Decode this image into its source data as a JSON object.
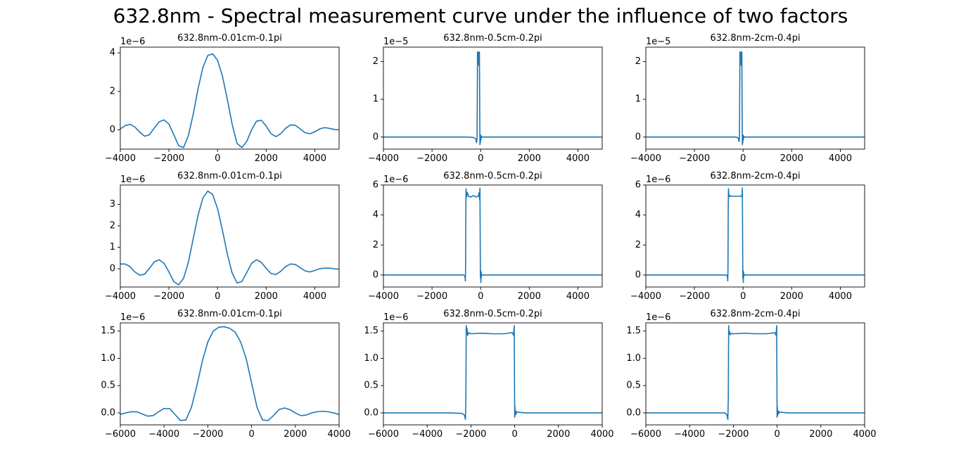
{
  "suptitle": "632.8nm - Spectral measurement curve under the influence of two factors",
  "line_color": "#1f77b4",
  "chart_data": [
    {
      "type": "line",
      "row": 0,
      "col": 0,
      "title": "632.8nm-0.01cm-0.1pi",
      "offset_label": "1e−6",
      "xlim": [
        -4000,
        5000
      ],
      "ylim": [
        -1.0,
        4.3
      ],
      "xticks": [
        -4000,
        -2000,
        0,
        2000,
        4000
      ],
      "xticklabels": [
        "−4000",
        "−2000",
        "0",
        "2000",
        "4000"
      ],
      "yticks": [
        0,
        2,
        4
      ],
      "yticklabels": [
        "0",
        "2",
        "4"
      ],
      "x": [
        -4000,
        -3800,
        -3600,
        -3400,
        -3200,
        -3000,
        -2800,
        -2600,
        -2400,
        -2200,
        -2000,
        -1800,
        -1600,
        -1400,
        -1200,
        -1000,
        -800,
        -600,
        -400,
        -200,
        0,
        200,
        400,
        600,
        800,
        1000,
        1200,
        1400,
        1600,
        1800,
        2000,
        2200,
        2400,
        2600,
        2800,
        3000,
        3200,
        3400,
        3600,
        3800,
        4000,
        4200,
        4400,
        4600,
        4800,
        5000
      ],
      "y": [
        0.05,
        0.22,
        0.29,
        0.15,
        -0.12,
        -0.33,
        -0.25,
        0.1,
        0.42,
        0.52,
        0.3,
        -0.25,
        -0.82,
        -0.92,
        -0.3,
        0.82,
        2.15,
        3.25,
        3.87,
        3.95,
        3.62,
        2.8,
        1.6,
        0.3,
        -0.7,
        -0.92,
        -0.6,
        0.0,
        0.45,
        0.5,
        0.2,
        -0.2,
        -0.35,
        -0.2,
        0.08,
        0.26,
        0.24,
        0.05,
        -0.15,
        -0.2,
        -0.1,
        0.05,
        0.12,
        0.08,
        0.02,
        0.0
      ]
    },
    {
      "type": "line",
      "row": 0,
      "col": 1,
      "title": "632.8nm-0.5cm-0.2pi",
      "offset_label": "1e−5",
      "xlim": [
        -4000,
        5000
      ],
      "ylim": [
        -0.32,
        2.38
      ],
      "xticks": [
        -4000,
        -2000,
        0,
        2000,
        4000
      ],
      "xticklabels": [
        "−4000",
        "−2000",
        "0",
        "2000",
        "4000"
      ],
      "yticks": [
        0,
        1,
        2
      ],
      "yticklabels": [
        "0",
        "1",
        "2"
      ],
      "x": [
        -4000,
        -1000,
        -600,
        -300,
        -200,
        -170,
        -150,
        -140,
        -130,
        -120,
        -110,
        -100,
        -90,
        -80,
        -70,
        -60,
        -50,
        -40,
        -30,
        -20,
        -10,
        0,
        10,
        20,
        30,
        40,
        50,
        100,
        200,
        600,
        1000,
        5000
      ],
      "y": [
        0.0,
        0.0,
        0.0,
        -0.01,
        -0.05,
        -0.15,
        -0.05,
        0.8,
        2.25,
        2.0,
        2.2,
        2.1,
        2.25,
        1.9,
        2.2,
        2.1,
        2.25,
        0.9,
        -0.2,
        0.06,
        -0.15,
        0.05,
        -0.08,
        0.03,
        -0.02,
        0.01,
        0.0,
        0.0,
        0.0,
        0.0,
        0.0,
        0.0
      ]
    },
    {
      "type": "line",
      "row": 0,
      "col": 2,
      "title": "632.8nm-2cm-0.4pi",
      "offset_label": "1e−5",
      "xlim": [
        -4000,
        5000
      ],
      "ylim": [
        -0.32,
        2.38
      ],
      "xticks": [
        -4000,
        -2000,
        0,
        2000,
        4000
      ],
      "xticklabels": [
        "−4000",
        "−2000",
        "0",
        "2000",
        "4000"
      ],
      "yticks": [
        0,
        1,
        2
      ],
      "yticklabels": [
        "0",
        "1",
        "2"
      ],
      "x": [
        -4000,
        -2000,
        -1000,
        -300,
        -200,
        -170,
        -150,
        -140,
        -130,
        -120,
        -110,
        -100,
        -90,
        -80,
        -70,
        -60,
        -50,
        -40,
        -30,
        -20,
        -10,
        0,
        10,
        20,
        30,
        40,
        50,
        100,
        200,
        1000,
        2000,
        5000
      ],
      "y": [
        0.0,
        0.0,
        0.0,
        0.0,
        -0.02,
        -0.12,
        -0.04,
        0.8,
        2.25,
        2.0,
        2.2,
        2.1,
        2.25,
        1.9,
        2.2,
        2.1,
        2.25,
        0.9,
        -0.2,
        0.06,
        -0.15,
        0.05,
        -0.08,
        0.03,
        -0.02,
        0.01,
        0.0,
        0.0,
        0.0,
        0.0,
        0.0,
        0.0
      ]
    },
    {
      "type": "line",
      "row": 1,
      "col": 0,
      "title": "632.8nm-0.01cm-0.1pi",
      "offset_label": "1e−6",
      "xlim": [
        -4000,
        5000
      ],
      "ylim": [
        -0.85,
        3.9
      ],
      "xticks": [
        -4000,
        -2000,
        0,
        2000,
        4000
      ],
      "xticklabels": [
        "−4000",
        "−2000",
        "0",
        "2000",
        "4000"
      ],
      "yticks": [
        0,
        1,
        2,
        3
      ],
      "yticklabels": [
        "0",
        "1",
        "2",
        "3"
      ],
      "x": [
        -4000,
        -3800,
        -3600,
        -3400,
        -3200,
        -3000,
        -2800,
        -2600,
        -2400,
        -2200,
        -2000,
        -1800,
        -1600,
        -1400,
        -1200,
        -1000,
        -800,
        -600,
        -400,
        -200,
        0,
        200,
        400,
        600,
        800,
        1000,
        1200,
        1400,
        1600,
        1800,
        2000,
        2200,
        2400,
        2600,
        2800,
        3000,
        3200,
        3400,
        3600,
        3800,
        4000,
        4200,
        4400,
        4600,
        4800,
        5000
      ],
      "y": [
        0.22,
        0.22,
        0.1,
        -0.15,
        -0.3,
        -0.25,
        0.02,
        0.32,
        0.42,
        0.25,
        -0.15,
        -0.6,
        -0.75,
        -0.45,
        0.3,
        1.4,
        2.5,
        3.3,
        3.62,
        3.45,
        2.8,
        1.8,
        0.7,
        -0.2,
        -0.66,
        -0.6,
        -0.18,
        0.25,
        0.42,
        0.3,
        0.02,
        -0.22,
        -0.27,
        -0.12,
        0.1,
        0.22,
        0.2,
        0.05,
        -0.1,
        -0.15,
        -0.08,
        0.0,
        0.03,
        0.03,
        0.0,
        -0.02
      ]
    },
    {
      "type": "line",
      "row": 1,
      "col": 1,
      "title": "632.8nm-0.5cm-0.2pi",
      "offset_label": "1e−6",
      "xlim": [
        -4000,
        5000
      ],
      "ylim": [
        -0.8,
        6.0
      ],
      "xticks": [
        -4000,
        -2000,
        0,
        2000,
        4000
      ],
      "xticklabels": [
        "−4000",
        "−2000",
        "0",
        "2000",
        "4000"
      ],
      "yticks": [
        0,
        2,
        4,
        6
      ],
      "yticklabels": [
        "0",
        "2",
        "4",
        "6"
      ],
      "x": [
        -4000,
        -2000,
        -1000,
        -700,
        -650,
        -630,
        -620,
        -610,
        -600,
        -580,
        -550,
        -500,
        -400,
        -300,
        -200,
        -100,
        -60,
        -40,
        -30,
        -20,
        -10,
        0,
        10,
        20,
        30,
        50,
        100,
        200,
        1000,
        5000
      ],
      "y": [
        0.0,
        0.0,
        0.0,
        0.0,
        -0.05,
        -0.4,
        0.5,
        4.5,
        5.75,
        5.2,
        5.5,
        5.25,
        5.2,
        5.3,
        5.2,
        5.25,
        5.5,
        5.0,
        5.8,
        3.0,
        -0.2,
        0.3,
        -0.5,
        0.2,
        -0.1,
        0.02,
        0.0,
        0.0,
        0.0,
        0.0
      ]
    },
    {
      "type": "line",
      "row": 1,
      "col": 2,
      "title": "632.8nm-2cm-0.4pi",
      "offset_label": "1e−6",
      "xlim": [
        -4000,
        5000
      ],
      "ylim": [
        -0.8,
        6.0
      ],
      "xticks": [
        -4000,
        -2000,
        0,
        2000,
        4000
      ],
      "xticklabels": [
        "−4000",
        "−2000",
        "0",
        "2000",
        "4000"
      ],
      "yticks": [
        0,
        2,
        4,
        6
      ],
      "yticklabels": [
        "0",
        "2",
        "4",
        "6"
      ],
      "x": [
        -4000,
        -2000,
        -1000,
        -700,
        -650,
        -630,
        -620,
        -610,
        -600,
        -580,
        -550,
        -500,
        -400,
        -300,
        -200,
        -100,
        -60,
        -40,
        -30,
        -20,
        -10,
        0,
        10,
        20,
        30,
        50,
        100,
        200,
        800,
        1000,
        5000
      ],
      "y": [
        0.0,
        0.0,
        0.0,
        0.0,
        -0.02,
        -0.4,
        0.5,
        4.5,
        5.75,
        5.2,
        5.3,
        5.25,
        5.25,
        5.25,
        5.25,
        5.25,
        5.3,
        5.2,
        5.8,
        3.0,
        -0.2,
        0.3,
        -0.5,
        0.2,
        -0.1,
        0.02,
        0.0,
        0.0,
        0.0,
        0.0,
        0.0
      ]
    },
    {
      "type": "line",
      "row": 2,
      "col": 0,
      "title": "632.8nm-0.01cm-0.1pi",
      "offset_label": "1e−6",
      "xlim": [
        -6000,
        4000
      ],
      "ylim": [
        -0.22,
        1.65
      ],
      "xticks": [
        -6000,
        -4000,
        -2000,
        0,
        2000,
        4000
      ],
      "xticklabels": [
        "−6000",
        "−4000",
        "−2000",
        "0",
        "2000",
        "4000"
      ],
      "yticks": [
        0.0,
        0.5,
        1.0,
        1.5
      ],
      "yticklabels": [
        "0.0",
        "0.5",
        "1.0",
        "1.5"
      ],
      "x": [
        -6000,
        -5750,
        -5500,
        -5250,
        -5000,
        -4750,
        -4500,
        -4250,
        -4000,
        -3750,
        -3500,
        -3250,
        -3000,
        -2750,
        -2500,
        -2250,
        -2000,
        -1750,
        -1500,
        -1250,
        -1000,
        -750,
        -500,
        -250,
        0,
        250,
        500,
        750,
        1000,
        1250,
        1500,
        1750,
        2000,
        2250,
        2500,
        2750,
        3000,
        3250,
        3500,
        3750,
        4000
      ],
      "y": [
        -0.03,
        0.0,
        0.02,
        0.02,
        -0.02,
        -0.06,
        -0.05,
        0.02,
        0.08,
        0.08,
        -0.03,
        -0.14,
        -0.13,
        0.1,
        0.5,
        0.95,
        1.3,
        1.5,
        1.57,
        1.58,
        1.55,
        1.48,
        1.3,
        1.0,
        0.55,
        0.1,
        -0.13,
        -0.14,
        -0.05,
        0.06,
        0.09,
        0.06,
        0.0,
        -0.05,
        -0.04,
        0.0,
        0.02,
        0.03,
        0.02,
        0.0,
        -0.03
      ]
    },
    {
      "type": "line",
      "row": 2,
      "col": 1,
      "title": "632.8nm-0.5cm-0.2pi",
      "offset_label": "1e−6",
      "xlim": [
        -6000,
        4000
      ],
      "ylim": [
        -0.22,
        1.65
      ],
      "xticks": [
        -6000,
        -4000,
        -2000,
        0,
        2000,
        4000
      ],
      "xticklabels": [
        "−6000",
        "−4000",
        "−2000",
        "0",
        "2000",
        "4000"
      ],
      "yticks": [
        0.0,
        0.5,
        1.0,
        1.5
      ],
      "yticklabels": [
        "0.0",
        "0.5",
        "1.0",
        "1.5"
      ],
      "x": [
        -6000,
        -4000,
        -3000,
        -2400,
        -2300,
        -2250,
        -2230,
        -2215,
        -2200,
        -2180,
        -2150,
        -2100,
        -2000,
        -1500,
        -1000,
        -500,
        -100,
        -50,
        -20,
        -10,
        0,
        10,
        20,
        40,
        70,
        100,
        200,
        500,
        2000,
        4000
      ],
      "y": [
        0.0,
        0.0,
        0.0,
        -0.01,
        -0.04,
        -0.12,
        0.3,
        1.6,
        1.45,
        1.55,
        1.42,
        1.47,
        1.45,
        1.46,
        1.45,
        1.45,
        1.47,
        1.42,
        1.6,
        0.7,
        -0.08,
        0.12,
        -0.05,
        0.04,
        -0.02,
        0.02,
        0.01,
        0.0,
        0.0,
        0.0
      ]
    },
    {
      "type": "line",
      "row": 2,
      "col": 2,
      "title": "632.8nm-2cm-0.4pi",
      "offset_label": "1e−6",
      "xlim": [
        -6000,
        4000
      ],
      "ylim": [
        -0.22,
        1.65
      ],
      "xticks": [
        -6000,
        -4000,
        -2000,
        0,
        2000,
        4000
      ],
      "xticklabels": [
        "−6000",
        "−4000",
        "−2000",
        "0",
        "2000",
        "4000"
      ],
      "yticks": [
        0.0,
        0.5,
        1.0,
        1.5
      ],
      "yticklabels": [
        "0.0",
        "0.5",
        "1.0",
        "1.5"
      ],
      "x": [
        -6000,
        -4000,
        -3000,
        -2400,
        -2300,
        -2250,
        -2230,
        -2215,
        -2200,
        -2180,
        -2150,
        -2100,
        -2000,
        -1500,
        -1000,
        -500,
        -100,
        -50,
        -20,
        -10,
        0,
        10,
        20,
        40,
        70,
        100,
        200,
        500,
        2000,
        4000
      ],
      "y": [
        0.0,
        0.0,
        0.0,
        0.0,
        -0.03,
        -0.12,
        0.3,
        1.6,
        1.45,
        1.5,
        1.43,
        1.46,
        1.45,
        1.46,
        1.45,
        1.45,
        1.47,
        1.42,
        1.6,
        0.7,
        -0.08,
        0.12,
        -0.05,
        0.04,
        -0.02,
        0.02,
        0.01,
        0.0,
        0.0,
        0.0
      ]
    }
  ]
}
